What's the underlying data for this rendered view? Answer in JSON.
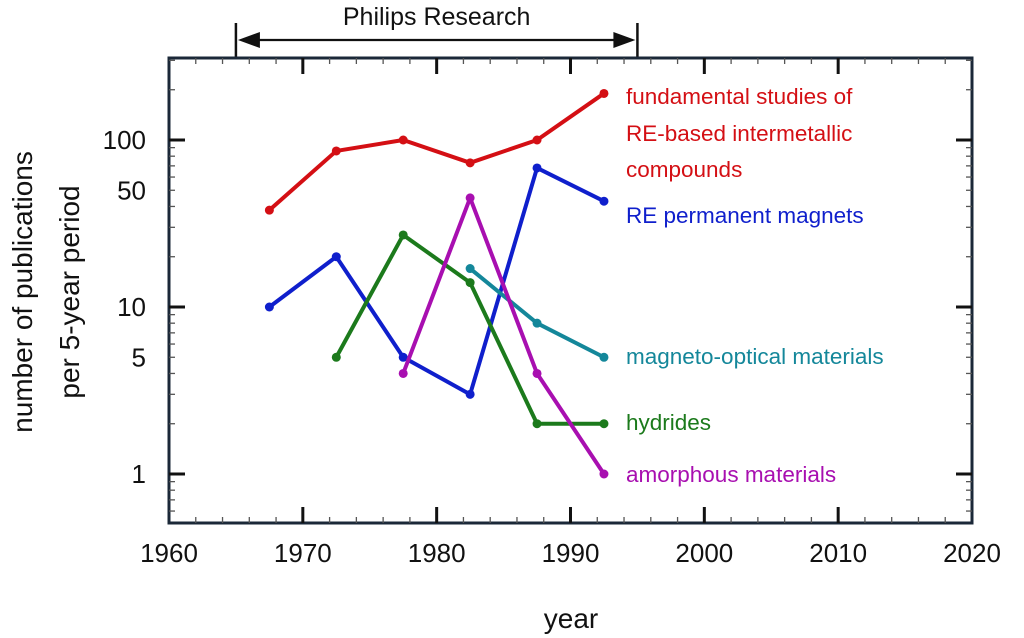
{
  "chart_data": {
    "type": "line",
    "title": "",
    "xlabel": "year",
    "ylabel": [
      "number of publications",
      "per 5-year period"
    ],
    "xlim": [
      1960,
      2020
    ],
    "ylim": [
      0.5,
      300
    ],
    "yscale": "log",
    "grid": false,
    "x_ticks": [
      1960,
      1970,
      1980,
      1990,
      2000,
      2010,
      2020
    ],
    "x_tick_labels": [
      "1960",
      "1970",
      "1980",
      "1990",
      "2000",
      "2010",
      "2020"
    ],
    "y_ticks": [
      1,
      5,
      10,
      50,
      100
    ],
    "y_tick_labels": [
      "1",
      "5",
      "10",
      "50",
      "100"
    ],
    "annotation": {
      "text": "Philips Research",
      "x_start": 1965,
      "x_end": 1995,
      "type": "double-arrow"
    },
    "legend_placement": "inline-right",
    "series": [
      {
        "name": "fundamental studies of RE-based intermetallic compounds",
        "label_lines": [
          "fundamental studies of",
          "RE-based intermetallic",
          "compounds"
        ],
        "color": "#d40f14",
        "x": [
          1967.5,
          1972.5,
          1977.5,
          1982.5,
          1987.5,
          1992.5
        ],
        "values": [
          38,
          86,
          100,
          73,
          100,
          190
        ]
      },
      {
        "name": "RE permanent magnets",
        "label_lines": [
          "RE permanent magnets"
        ],
        "color": "#0f1fcc",
        "x": [
          1967.5,
          1972.5,
          1977.5,
          1982.5,
          1987.5,
          1992.5
        ],
        "values": [
          10,
          20,
          5,
          3,
          68,
          43
        ]
      },
      {
        "name": "magneto-optical materials",
        "label_lines": [
          "magneto-optical materials"
        ],
        "color": "#14879a",
        "x": [
          1982.5,
          1987.5,
          1992.5
        ],
        "values": [
          17,
          8,
          5
        ]
      },
      {
        "name": "hydrides",
        "label_lines": [
          "hydrides"
        ],
        "color": "#1c7a1c",
        "x": [
          1972.5,
          1977.5,
          1982.5,
          1987.5,
          1992.5
        ],
        "values": [
          5,
          27,
          14,
          2,
          2
        ]
      },
      {
        "name": "amorphous materials",
        "label_lines": [
          "amorphous materials"
        ],
        "color": "#a80fb0",
        "x": [
          1977.5,
          1982.5,
          1987.5,
          1992.5
        ],
        "values": [
          4,
          45,
          4,
          1
        ]
      }
    ]
  },
  "colors": {
    "frame": "#1b2838",
    "text": "#111111"
  }
}
